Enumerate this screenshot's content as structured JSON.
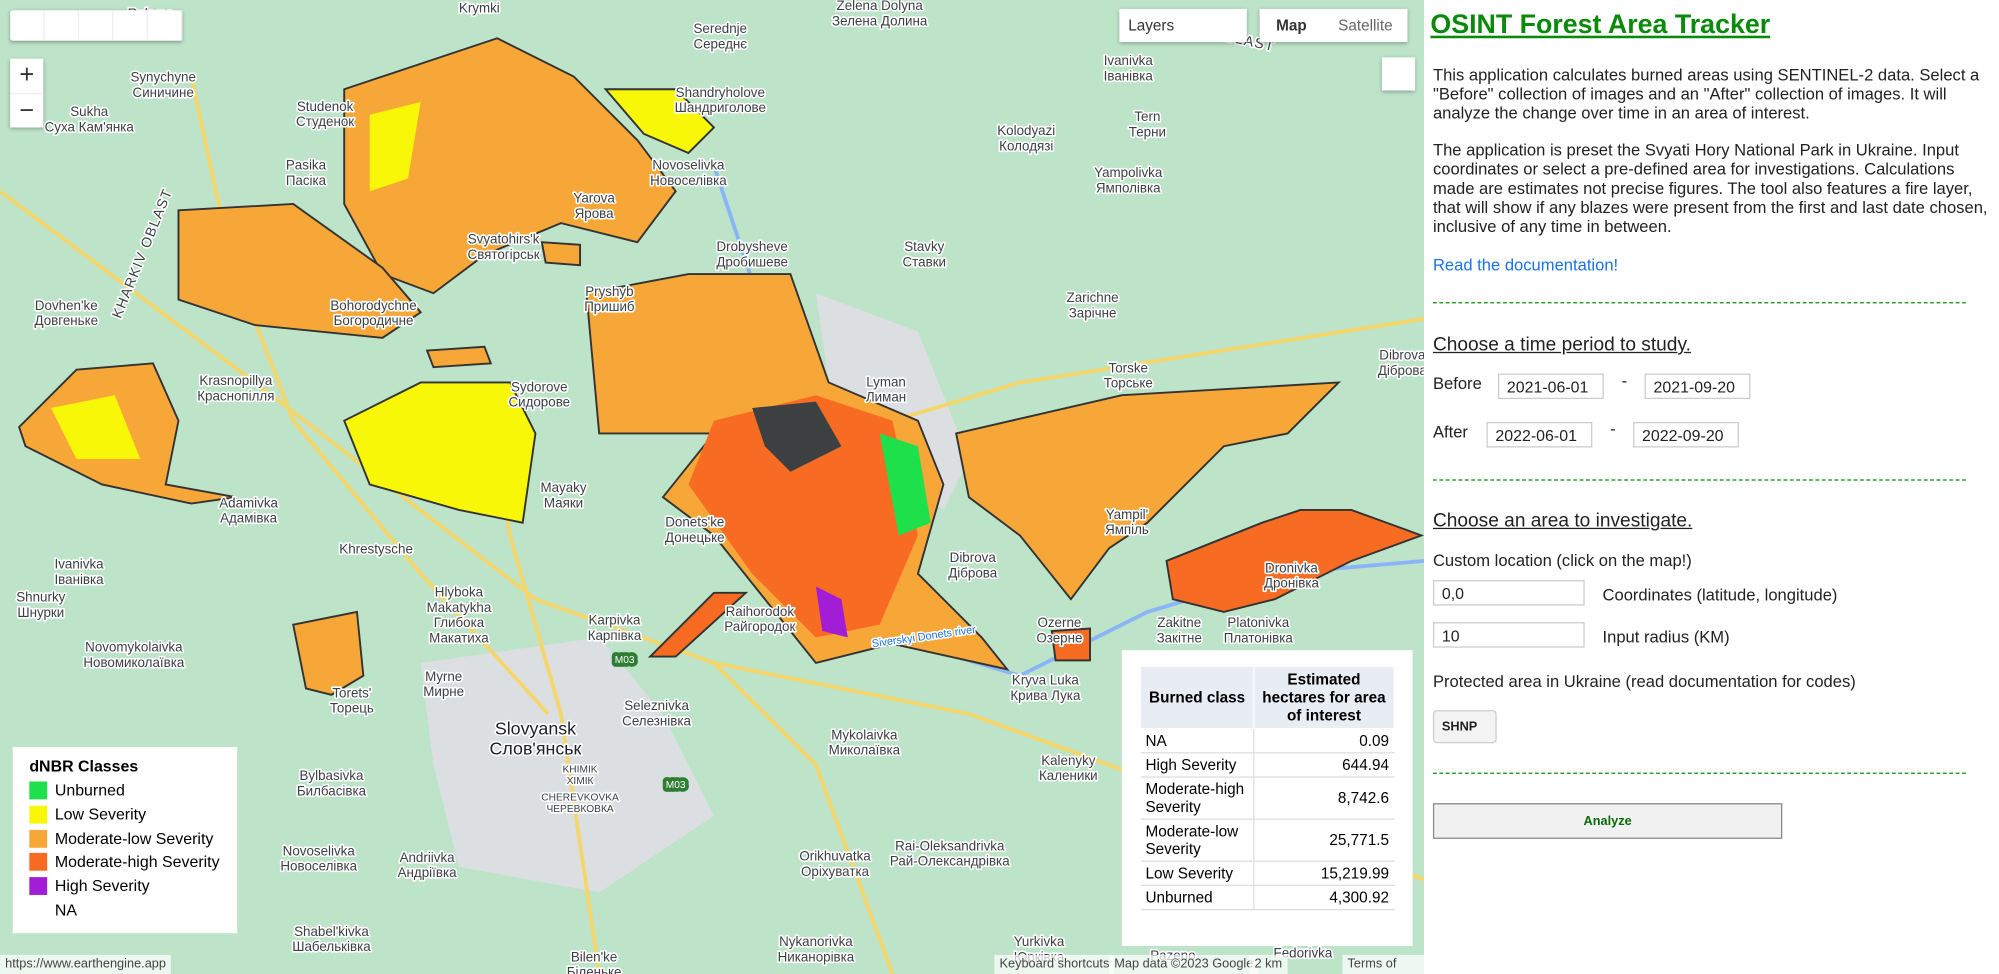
{
  "map": {
    "toolbar": {
      "layers": "Layers",
      "map": "Map",
      "satellite": "Satellite"
    },
    "controls": {
      "zoom_in": "+",
      "zoom_out": "−"
    },
    "oblasts": [
      "KHARKIV OBLAST",
      "OBLAST"
    ],
    "roads": [
      "M03",
      "M03"
    ],
    "river": "Siverskyi Donets river",
    "places": [
      {
        "name": "Krymki",
        "local": ""
      },
      {
        "name": "Zelena Dolyna",
        "local": "Зелена Долина"
      },
      {
        "name": "Rukyne",
        "local": "Букине"
      },
      {
        "name": "Serednje",
        "local": "Середнє"
      },
      {
        "name": "Ivanivka",
        "local": "Іванівка"
      },
      {
        "name": "Synychyne",
        "local": "Синичине"
      },
      {
        "name": "Sukha",
        "local": "Суха Кам'янка"
      },
      {
        "name": "Shandryholove",
        "local": "Шандриголове"
      },
      {
        "name": "Studenok",
        "local": "Студенок"
      },
      {
        "name": "Tern",
        "local": "Терни"
      },
      {
        "name": "Kolodyazi",
        "local": "Колодязі"
      },
      {
        "name": "Pasika",
        "local": "Пасіка"
      },
      {
        "name": "Novoselivka",
        "local": "Новоселівка"
      },
      {
        "name": "Yampolivka",
        "local": "Ямполівка"
      },
      {
        "name": "Yarova",
        "local": "Ярова"
      },
      {
        "name": "Svyatohirs'k",
        "local": "Святогірськ"
      },
      {
        "name": "Drobysheve",
        "local": "Дробишеве"
      },
      {
        "name": "Stavky",
        "local": "Ставки"
      },
      {
        "name": "Zarichne",
        "local": "Зарічне"
      },
      {
        "name": "Dovhen'ke",
        "local": "Довгеньке"
      },
      {
        "name": "Bohorodychne",
        "local": "Богородичне"
      },
      {
        "name": "Pryshyb",
        "local": "Пришиб"
      },
      {
        "name": "Torske",
        "local": "Торське"
      },
      {
        "name": "Dibrova",
        "local": "Діброва"
      },
      {
        "name": "Krasnopillya",
        "local": "Краснопілля"
      },
      {
        "name": "Sydorove",
        "local": "Сидорове"
      },
      {
        "name": "Lyman",
        "local": "Лиман"
      },
      {
        "name": "Mayaky",
        "local": "Маяки"
      },
      {
        "name": "Adamivka",
        "local": "Адамівка"
      },
      {
        "name": "Yampil'",
        "local": "Ямпіль"
      },
      {
        "name": "Donets'ke",
        "local": "Донецьке"
      },
      {
        "name": "Khrestysche",
        "local": ""
      },
      {
        "name": "Ivanivka",
        "local": "Іванівка"
      },
      {
        "name": "Dibrova",
        "local": "Діброва"
      },
      {
        "name": "Dronivka",
        "local": "Дронівка"
      },
      {
        "name": "Hlyboka",
        "local": "Makatykha"
      },
      {
        "name": "Глибока",
        "local": "Макатиха"
      },
      {
        "name": "Shnurky",
        "local": "Шнурки"
      },
      {
        "name": "Karpivka",
        "local": "Карпівка"
      },
      {
        "name": "Raihorodok",
        "local": "Райгородок"
      },
      {
        "name": "Ozerne",
        "local": "Озерне"
      },
      {
        "name": "Zakitne",
        "local": "Закітне"
      },
      {
        "name": "Platonivka",
        "local": "Платонівка"
      },
      {
        "name": "Novomykolaivka",
        "local": "Новомиколаївка"
      },
      {
        "name": "Kryva Luka",
        "local": "Крива Лука"
      },
      {
        "name": "Myrne",
        "local": "Мирне"
      },
      {
        "name": "Torets'",
        "local": "Торець"
      },
      {
        "name": "Seleznivka",
        "local": "Селезнівка"
      },
      {
        "name": "Mykolaivka",
        "local": "Миколаївка"
      },
      {
        "name": "Kalenyky",
        "local": "Каленики"
      },
      {
        "name": "Bylbasivka",
        "local": "Билбасівка"
      },
      {
        "name": "KHIMIK",
        "local": "ХІМІК"
      },
      {
        "name": "CHEREVKOVKA",
        "local": "ЧЕРЕВКОВКА"
      },
      {
        "name": "Novoselivka",
        "local": "Новоселівка"
      },
      {
        "name": "Andriivka",
        "local": "Андріївка"
      },
      {
        "name": "Orikhuvatka",
        "local": "Оріхуватка"
      },
      {
        "name": "Rai-Oleksandrivka",
        "local": "Рай-Олександрівка"
      },
      {
        "name": "Shabel'kivka",
        "local": "Шабельківка"
      },
      {
        "name": "Nykanorivka",
        "local": "Никанорівка"
      },
      {
        "name": "Yurkivka",
        "local": "Юрківка"
      },
      {
        "name": "Bilen'ke",
        "local": "Біленьке"
      },
      {
        "name": "Pazeno",
        "local": ""
      },
      {
        "name": "Fedorivka",
        "local": ""
      }
    ],
    "city": {
      "name": "Slovyansk",
      "local": "Слов'янськ"
    },
    "legend": {
      "title": "dNBR Classes",
      "items": [
        {
          "label": "Unburned",
          "color": "#1ee04a"
        },
        {
          "label": "Low Severity",
          "color": "#f7f707"
        },
        {
          "label": "Moderate-low Severity",
          "color": "#f7a737"
        },
        {
          "label": "Moderate-high Severity",
          "color": "#f76b22"
        },
        {
          "label": "High Severity",
          "color": "#a21ed6"
        },
        {
          "label": "NA",
          "color": "#ffffff"
        }
      ]
    },
    "table": {
      "headers": [
        "Burned class",
        "Estimated hectares for area of interest"
      ],
      "rows": [
        [
          "NA",
          "0.09"
        ],
        [
          "High Severity",
          "644.94"
        ],
        [
          "Moderate-high Severity",
          "8,742.6"
        ],
        [
          "Moderate-low Severity",
          "25,771.5"
        ],
        [
          "Low Severity",
          "15,219.99"
        ],
        [
          "Unburned",
          "4,300.92"
        ]
      ]
    },
    "footer": {
      "url": "https://www.earthengine.app",
      "shortcuts": "Keyboard shortcuts",
      "attribution": "Map data ©2023 Google",
      "scale": "2 km",
      "terms": "Terms of Use"
    }
  },
  "panel": {
    "title": "OSINT Forest Area Tracker",
    "intro": "This application calculates burned areas using SENTINEL-2 data. Select a \"Before\" collection of images and an \"After\" collection of images. It will analyze the change over time in an area of interest.",
    "preset": "The application is preset the Svyati Hory National Park in Ukraine. Input coordinates or select a pre-defined area for investigations. Calculations made are estimates not precise figures. The tool also features a fire layer, that will show if any blazes were present from the first and last date chosen, inclusive of any time in between.",
    "link": "Read the documentation!",
    "time_heading": "Choose a time period to study.",
    "before": {
      "label": "Before",
      "start": "2021-06-01",
      "sep": "-",
      "end": "2021-09-20"
    },
    "after": {
      "label": "After",
      "start": "2022-06-01",
      "sep": "-",
      "end": "2022-09-20"
    },
    "area_heading": "Choose an area to investigate.",
    "custom": "Custom location (click on the map!)",
    "coords": {
      "value": "0,0",
      "label": "Coordinates (latitude, longitude)"
    },
    "radius": {
      "value": "10",
      "label": "Input radius (KM)"
    },
    "protected": "Protected area in Ukraine (read documentation for codes)",
    "select": "SHNP",
    "button": "Analyze"
  }
}
